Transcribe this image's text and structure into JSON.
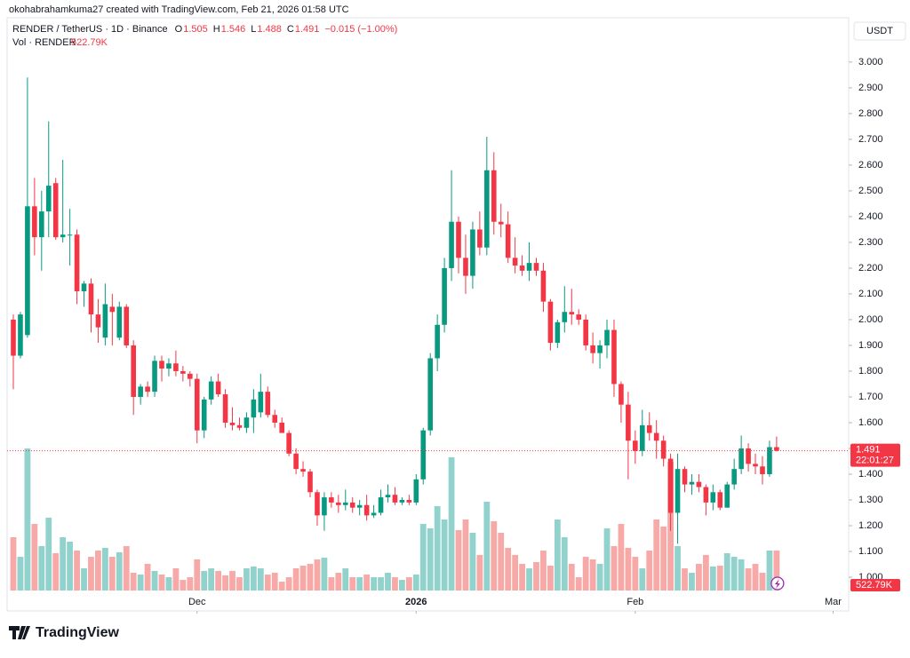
{
  "chart_data": {
    "type": "candlestick",
    "header": {
      "credit": "okohabrahamkuma27 created with TradingView.com, Feb 21, 2026 01:58 UTC",
      "symbol": "RENDER / TetherUS · 1D · Binance",
      "ohlc": [
        {
          "key": "O",
          "text": "1.505"
        },
        {
          "key": "H",
          "text": "1.546"
        },
        {
          "key": "L",
          "text": "1.488"
        },
        {
          "key": "C",
          "text": "1.491"
        }
      ],
      "change": "−0.015 (−1.00%)",
      "volume_name": "Vol · RENDER",
      "volume_text": "522.79K"
    },
    "currency": "USDT",
    "price_tag": "1.491",
    "countdown": "22:01:27",
    "volume_tag": "522.79K",
    "brand": "TradingView",
    "up_color": "#089981",
    "down_color": "#f23645",
    "volume_up_color": "#92d2cc",
    "volume_down_color": "#f7a9a7",
    "xlim": [
      -0.88,
      118.2
    ],
    "xticks": [
      {
        "value": 26,
        "label": "Dec"
      },
      {
        "value": 57,
        "label": "2026"
      },
      {
        "value": 88,
        "label": "Feb"
      },
      {
        "value": 116,
        "label": "Mar"
      }
    ],
    "ylim": [
      0.869,
      3.172
    ],
    "yticks": [
      {
        "value": 1,
        "label": "1.000"
      },
      {
        "value": 1.1,
        "label": "1.100"
      },
      {
        "value": 1.2,
        "label": "1.200"
      },
      {
        "value": 1.3,
        "label": "1.300"
      },
      {
        "value": 1.4,
        "label": "1.400"
      },
      {
        "value": 1.5,
        "label": "1.500"
      },
      {
        "value": 1.6,
        "label": "1.600"
      },
      {
        "value": 1.7,
        "label": "1.700"
      },
      {
        "value": 1.8,
        "label": "1.800"
      },
      {
        "value": 1.9,
        "label": "1.900"
      },
      {
        "value": 2,
        "label": "2.000"
      },
      {
        "value": 2.1,
        "label": "2.100"
      },
      {
        "value": 2.2,
        "label": "2.200"
      },
      {
        "value": 2.3,
        "label": "2.300"
      },
      {
        "value": 2.4,
        "label": "2.400"
      },
      {
        "value": 2.5,
        "label": "2.500"
      },
      {
        "value": 2.6,
        "label": "2.600"
      },
      {
        "value": 2.7,
        "label": "2.700"
      },
      {
        "value": 2.8,
        "label": "2.800"
      },
      {
        "value": 2.9,
        "label": "2.900"
      },
      {
        "value": 3,
        "label": "3.000"
      }
    ],
    "y2lim": [
      0,
      6970000
    ],
    "grid": false,
    "open": [
      2.0,
      1.86,
      1.94,
      2.44,
      2.32,
      2.42,
      2.53,
      2.32,
      2.33,
      2.33,
      2.11,
      2.14,
      2.02,
      1.93,
      2.05,
      1.93,
      2.05,
      1.9,
      1.7,
      1.74,
      1.72,
      1.84,
      1.81,
      1.83,
      1.8,
      1.79,
      1.77,
      1.57,
      1.69,
      1.76,
      1.71,
      1.6,
      1.59,
      1.58,
      1.62,
      1.64,
      1.72,
      1.63,
      1.6,
      1.56,
      1.48,
      1.42,
      1.41,
      1.33,
      1.24,
      1.31,
      1.29,
      1.28,
      1.29,
      1.27,
      1.28,
      1.24,
      1.25,
      1.31,
      1.32,
      1.29,
      1.3,
      1.29,
      1.38,
      1.57,
      1.85,
      1.98,
      2.2,
      2.38,
      2.24,
      2.17,
      2.35,
      2.28,
      2.58,
      2.38,
      2.37,
      2.24,
      2.21,
      2.19,
      2.22,
      2.19,
      2.07,
      1.91,
      1.99,
      2.03,
      2.02,
      2.0,
      1.9,
      1.87,
      1.9,
      1.96,
      1.75,
      1.67,
      1.53,
      1.49,
      1.59,
      1.56,
      1.53,
      1.46,
      1.25,
      1.42,
      1.36,
      1.37,
      1.35,
      1.29,
      1.33,
      1.27,
      1.36,
      1.42,
      1.5,
      1.44,
      1.43,
      1.4,
      1.505
    ],
    "high": [
      2.02,
      2.03,
      2.94,
      2.55,
      2.5,
      2.77,
      2.55,
      2.62,
      2.43,
      2.35,
      2.15,
      2.16,
      2.08,
      2.14,
      2.1,
      2.07,
      2.06,
      1.92,
      1.75,
      1.76,
      1.86,
      1.86,
      1.85,
      1.88,
      1.82,
      1.8,
      1.79,
      1.7,
      1.78,
      1.79,
      1.73,
      1.66,
      1.62,
      1.64,
      1.73,
      1.79,
      1.74,
      1.65,
      1.62,
      1.57,
      1.5,
      1.45,
      1.42,
      1.34,
      1.33,
      1.33,
      1.32,
      1.34,
      1.31,
      1.3,
      1.32,
      1.28,
      1.34,
      1.36,
      1.35,
      1.31,
      1.32,
      1.4,
      1.58,
      1.87,
      2.02,
      2.24,
      2.58,
      2.4,
      2.33,
      2.38,
      2.42,
      2.71,
      2.65,
      2.45,
      2.42,
      2.32,
      2.25,
      2.3,
      2.24,
      2.22,
      2.08,
      2.0,
      2.13,
      2.12,
      2.04,
      2.02,
      1.95,
      1.92,
      2.0,
      2.0,
      1.76,
      1.72,
      1.57,
      1.65,
      1.64,
      1.61,
      1.55,
      1.48,
      1.48,
      1.43,
      1.4,
      1.4,
      1.36,
      1.36,
      1.34,
      1.37,
      1.46,
      1.55,
      1.52,
      1.48,
      1.47,
      1.53,
      1.546
    ],
    "low": [
      1.73,
      1.85,
      1.93,
      2.25,
      2.19,
      2.32,
      2.31,
      2.3,
      2.21,
      2.06,
      2.05,
      1.95,
      1.91,
      1.9,
      1.9,
      1.92,
      1.89,
      1.63,
      1.67,
      1.7,
      1.7,
      1.76,
      1.78,
      1.78,
      1.76,
      1.74,
      1.52,
      1.54,
      1.67,
      1.7,
      1.58,
      1.57,
      1.57,
      1.56,
      1.56,
      1.62,
      1.62,
      1.58,
      1.56,
      1.47,
      1.4,
      1.39,
      1.31,
      1.2,
      1.18,
      1.27,
      1.25,
      1.26,
      1.25,
      1.24,
      1.22,
      1.23,
      1.24,
      1.29,
      1.28,
      1.28,
      1.28,
      1.28,
      1.36,
      1.55,
      1.8,
      1.95,
      2.15,
      2.18,
      2.1,
      2.12,
      2.25,
      2.25,
      2.33,
      2.32,
      2.22,
      2.18,
      2.17,
      2.15,
      2.17,
      2.03,
      1.88,
      1.89,
      1.95,
      1.98,
      1.98,
      1.88,
      1.83,
      1.81,
      1.85,
      1.7,
      1.6,
      1.38,
      1.44,
      1.47,
      1.53,
      1.46,
      1.43,
      1.18,
      1.13,
      1.33,
      1.32,
      1.33,
      1.24,
      1.26,
      1.26,
      1.27,
      1.34,
      1.4,
      1.41,
      1.4,
      1.36,
      1.39,
      1.488
    ],
    "close": [
      1.86,
      2.02,
      2.44,
      2.32,
      2.42,
      2.52,
      2.32,
      2.33,
      2.33,
      2.11,
      2.14,
      2.02,
      1.97,
      2.06,
      2.03,
      2.05,
      1.9,
      1.7,
      1.74,
      1.72,
      1.84,
      1.81,
      1.83,
      1.8,
      1.79,
      1.77,
      1.57,
      1.69,
      1.76,
      1.71,
      1.6,
      1.59,
      1.58,
      1.62,
      1.69,
      1.72,
      1.63,
      1.6,
      1.56,
      1.48,
      1.42,
      1.41,
      1.33,
      1.24,
      1.31,
      1.29,
      1.28,
      1.29,
      1.27,
      1.28,
      1.24,
      1.25,
      1.31,
      1.32,
      1.29,
      1.3,
      1.29,
      1.38,
      1.57,
      1.85,
      1.98,
      2.2,
      2.38,
      2.24,
      2.17,
      2.35,
      2.28,
      2.58,
      2.38,
      2.37,
      2.24,
      2.21,
      2.19,
      2.22,
      2.19,
      2.07,
      1.91,
      1.99,
      2.03,
      2.02,
      2.0,
      1.9,
      1.87,
      1.9,
      1.96,
      1.75,
      1.67,
      1.53,
      1.49,
      1.59,
      1.56,
      1.53,
      1.46,
      1.25,
      1.42,
      1.36,
      1.37,
      1.35,
      1.29,
      1.33,
      1.27,
      1.36,
      1.42,
      1.5,
      1.44,
      1.43,
      1.4,
      1.505,
      1.491
    ],
    "volume": [
      697000,
      441000,
      1859000,
      871000,
      581000,
      953000,
      488000,
      697000,
      639000,
      523000,
      290000,
      441000,
      523000,
      558000,
      441000,
      500000,
      581000,
      232000,
      209000,
      349000,
      256000,
      209000,
      174000,
      290000,
      139000,
      174000,
      407000,
      256000,
      290000,
      256000,
      198000,
      256000,
      174000,
      290000,
      314000,
      290000,
      209000,
      232000,
      116000,
      174000,
      290000,
      325000,
      349000,
      407000,
      430000,
      174000,
      232000,
      290000,
      174000,
      174000,
      209000,
      174000,
      174000,
      232000,
      174000,
      139000,
      174000,
      209000,
      871000,
      813000,
      1104000,
      929000,
      1743000,
      790000,
      929000,
      755000,
      465000,
      1162000,
      906000,
      755000,
      558000,
      465000,
      349000,
      290000,
      372000,
      523000,
      325000,
      929000,
      697000,
      349000,
      174000,
      441000,
      407000,
      349000,
      813000,
      581000,
      871000,
      558000,
      441000,
      290000,
      523000,
      929000,
      837000,
      1685000,
      581000,
      290000,
      232000,
      349000,
      465000,
      314000,
      325000,
      488000,
      441000,
      407000,
      290000,
      349000,
      232000,
      523000,
      522790
    ]
  }
}
